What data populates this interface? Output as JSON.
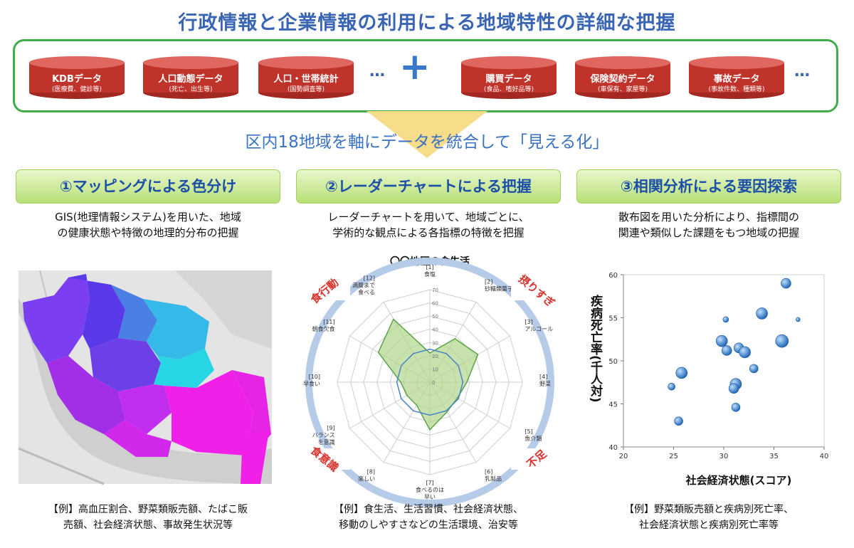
{
  "title": "行政情報と企業情報の利用による地域特性の詳細な把握",
  "data_sources": [
    {
      "name": "KDBデータ",
      "sub": "(医療費、健診等)"
    },
    {
      "name": "人口動態データ",
      "sub": "(死亡、出生等)"
    },
    {
      "name": "人口・世帯統計",
      "sub": "(国勢調査等)"
    },
    {
      "name": "購買データ",
      "sub": "(食品、嗜好品等)"
    },
    {
      "name": "保険契約データ",
      "sub": "(車保有、家屋等)"
    },
    {
      "name": "事故データ",
      "sub": "(事故件数、種類等)"
    }
  ],
  "ellipsis": "…",
  "plus": "+",
  "integration": "区内18地域を軸にデータを統合して「見える化」",
  "colors": {
    "cylinder": "#c0332b",
    "frame": "#3fae49",
    "title": "#3a64b4",
    "arrow": "#f7dc8a",
    "accent_red": "#d9302b"
  },
  "sections": [
    {
      "heading": "①マッピングによる色分け",
      "desc": [
        "GIS(地理情報システム)を用いた、地域",
        "の健康状態や特徴の地理的分布の把握"
      ],
      "example": [
        "【例】高血圧割合、野菜類販売額、たばこ販",
        "売額、社会経済状態、事故発生状況等"
      ]
    },
    {
      "heading": "②レーダーチャートによる把握",
      "desc": [
        "レーダーチャートを用いて、地域ごとに、",
        "学術的な観点による各指標の特徴を把握"
      ],
      "example": [
        "【例】食生活、生活習慣、社会経済状態、",
        "移動のしやすさなどの生活環境、治安等"
      ]
    },
    {
      "heading": "③相関分析による要因探索",
      "desc": [
        "散布図を用いた分析により、指標間の",
        "関連や類似した課題をもつ地域の把握"
      ],
      "example": [
        "【例】野菜類販売額と疾病別死亡率、",
        "社会経済状態と疾病別死亡率等"
      ]
    }
  ],
  "chart_data": [
    {
      "type": "radar",
      "title": "〇〇地区の食生活",
      "axes": [
        "[1] 食塩",
        "[2] 砂糖類菓子",
        "[3] アルコール",
        "[4] 野菜",
        "[5] 魚介類",
        "[6] 乳製品",
        "[7] 食べるのは 早い",
        "[8] 楽しい",
        "[9] バランス を意識",
        "[10] 早食い",
        "[11] 朝食欠食",
        "[12] 満腹まで 食べる"
      ],
      "ticks": [
        "0",
        "10",
        "20",
        "30",
        "40",
        "50",
        "60",
        "70"
      ],
      "rlim": [
        0,
        70
      ],
      "series": [
        {
          "values": [
            22,
            38,
            42,
            28,
            24,
            26,
            36,
            20,
            20,
            22,
            45,
            55
          ]
        },
        {
          "values": [
            25,
            25,
            25,
            25,
            25,
            25,
            25,
            25,
            25,
            25,
            25,
            25
          ]
        }
      ],
      "corner_labels": [
        "食行動",
        "摂りすぎ",
        "食意識",
        "不足"
      ]
    },
    {
      "type": "scatter",
      "xlabel": "社会経済状態(スコア)",
      "ylabel": "疾病死亡率(千人対)",
      "xlim": [
        20,
        40
      ],
      "ylim": [
        40,
        60
      ],
      "xticks": [
        "20",
        "25",
        "30",
        "35",
        "40"
      ],
      "yticks": [
        "40",
        "45",
        "50",
        "55",
        "60"
      ],
      "points": [
        {
          "x": 36.2,
          "y": 59.0,
          "size": 7
        },
        {
          "x": 30.2,
          "y": 54.8,
          "size": 4
        },
        {
          "x": 33.8,
          "y": 55.5,
          "size": 8
        },
        {
          "x": 37.4,
          "y": 54.8,
          "size": 3
        },
        {
          "x": 29.8,
          "y": 52.3,
          "size": 8
        },
        {
          "x": 35.8,
          "y": 52.3,
          "size": 9
        },
        {
          "x": 30.3,
          "y": 51.2,
          "size": 7
        },
        {
          "x": 31.5,
          "y": 51.5,
          "size": 7
        },
        {
          "x": 32.1,
          "y": 51.0,
          "size": 8
        },
        {
          "x": 33.0,
          "y": 49.1,
          "size": 6
        },
        {
          "x": 25.8,
          "y": 48.6,
          "size": 8
        },
        {
          "x": 31.2,
          "y": 47.3,
          "size": 8
        },
        {
          "x": 31.0,
          "y": 46.8,
          "size": 7
        },
        {
          "x": 24.8,
          "y": 47.0,
          "size": 5
        },
        {
          "x": 31.2,
          "y": 44.6,
          "size": 6
        },
        {
          "x": 25.5,
          "y": 43.0,
          "size": 6
        }
      ]
    }
  ]
}
